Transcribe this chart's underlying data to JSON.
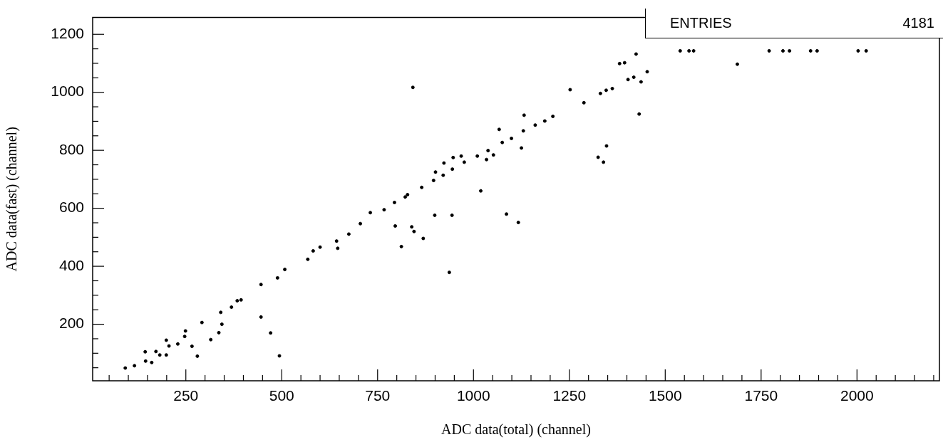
{
  "chart_data": {
    "type": "scatter",
    "xlabel": "ADC data(total) (channel)",
    "ylabel": "ADC data(fast) (channel)",
    "annotations": [
      "ENTRIES",
      "4181"
    ],
    "marker": "circle",
    "legend": false,
    "grid": false,
    "xlim": [
      7,
      2215
    ],
    "ylim": [
      5,
      1258
    ],
    "xticks": [
      {
        "value": 50,
        "label": null
      },
      {
        "value": 100,
        "label": null
      },
      {
        "value": 150,
        "label": null
      },
      {
        "value": 200,
        "label": null
      },
      250,
      {
        "value": 300,
        "label": null
      },
      {
        "value": 350,
        "label": null
      },
      {
        "value": 400,
        "label": null
      },
      {
        "value": 450,
        "label": null
      },
      500,
      {
        "value": 550,
        "label": null
      },
      {
        "value": 600,
        "label": null
      },
      {
        "value": 650,
        "label": null
      },
      {
        "value": 700,
        "label": null
      },
      750,
      {
        "value": 800,
        "label": null
      },
      {
        "value": 850,
        "label": null
      },
      {
        "value": 900,
        "label": null
      },
      {
        "value": 950,
        "label": null
      },
      1000,
      {
        "value": 1050,
        "label": null
      },
      {
        "value": 1100,
        "label": null
      },
      {
        "value": 1150,
        "label": null
      },
      {
        "value": 1200,
        "label": null
      },
      1250,
      {
        "value": 1300,
        "label": null
      },
      {
        "value": 1350,
        "label": null
      },
      {
        "value": 1400,
        "label": null
      },
      {
        "value": 1450,
        "label": null
      },
      1500,
      {
        "value": 1550,
        "label": null
      },
      {
        "value": 1600,
        "label": null
      },
      {
        "value": 1650,
        "label": null
      },
      {
        "value": 1700,
        "label": null
      },
      1750,
      {
        "value": 1800,
        "label": null
      },
      {
        "value": 1850,
        "label": null
      },
      {
        "value": 1900,
        "label": null
      },
      {
        "value": 1950,
        "label": null
      },
      2000,
      {
        "value": 2050,
        "label": null
      },
      {
        "value": 2100,
        "label": null
      },
      {
        "value": 2150,
        "label": null
      },
      {
        "value": 2200,
        "label": null
      }
    ],
    "yticks": [
      {
        "value": 50,
        "label": null
      },
      {
        "value": 100,
        "label": null
      },
      {
        "value": 150,
        "label": null
      },
      200,
      {
        "value": 250,
        "label": null
      },
      {
        "value": 300,
        "label": null
      },
      {
        "value": 350,
        "label": null
      },
      400,
      {
        "value": 450,
        "label": null
      },
      {
        "value": 500,
        "label": null
      },
      {
        "value": 550,
        "label": null
      },
      600,
      {
        "value": 650,
        "label": null
      },
      {
        "value": 700,
        "label": null
      },
      {
        "value": 750,
        "label": null
      },
      800,
      {
        "value": 850,
        "label": null
      },
      {
        "value": 900,
        "label": null
      },
      {
        "value": 950,
        "label": null
      },
      1000,
      {
        "value": 1050,
        "label": null
      },
      {
        "value": 1100,
        "label": null
      },
      {
        "value": 1150,
        "label": null
      },
      1200
    ],
    "series": [
      {
        "color": "#000000",
        "x": [
          92,
          144,
          199,
          249,
          292,
          341,
          384,
          446,
          508,
          582,
          600,
          643,
          705,
          767,
          794,
          822,
          828,
          865,
          896,
          921,
          945,
          976,
          1010,
          1038,
          1075,
          1099,
          1130,
          1161,
          1186,
          1207,
          842,
          1067,
          1132,
          1125,
          1019,
          947,
          968,
          923,
          901,
          1034,
          1052,
          1252,
          1288,
          1331,
          1346,
          1362,
          1381,
          1394,
          1403,
          1347,
          1325,
          1339,
          1424,
          1453,
          1418,
          1437,
          1432,
          1688,
          1539,
          1562,
          1574,
          1771,
          1807,
          1824,
          1879,
          1896,
          2003,
          2024,
          646,
          731,
          675,
          796,
          812,
          839,
          845,
          869,
          899,
          944,
          937,
          1086,
          1117,
          116,
          145,
          161,
          172,
          182,
          199,
          206,
          229,
          247,
          266,
          280,
          315,
          336,
          344,
          369,
          394,
          446,
          471,
          494,
          489,
          568
        ],
        "values": [
          49,
          105,
          145,
          177,
          206,
          241,
          281,
          337,
          389,
          453,
          466,
          487,
          547,
          595,
          620,
          639,
          647,
          672,
          696,
          714,
          735,
          759,
          780,
          799,
          827,
          841,
          867,
          887,
          901,
          917,
          1017,
          872,
          921,
          808,
          660,
          775,
          780,
          756,
          725,
          768,
          784,
          1009,
          964,
          996,
          1007,
          1013,
          1099,
          1102,
          1044,
          815,
          776,
          759,
          1132,
          1071,
          1052,
          1036,
          925,
          1097,
          1143,
          1143,
          1143,
          1143,
          1143,
          1143,
          1143,
          1143,
          1143,
          1143,
          462,
          585,
          511,
          539,
          468,
          536,
          520,
          496,
          576,
          576,
          379,
          580,
          551,
          57,
          73,
          68,
          106,
          94,
          94,
          125,
          132,
          158,
          124,
          90,
          147,
          171,
          200,
          259,
          284,
          225,
          170,
          91,
          360,
          424
        ]
      }
    ]
  }
}
